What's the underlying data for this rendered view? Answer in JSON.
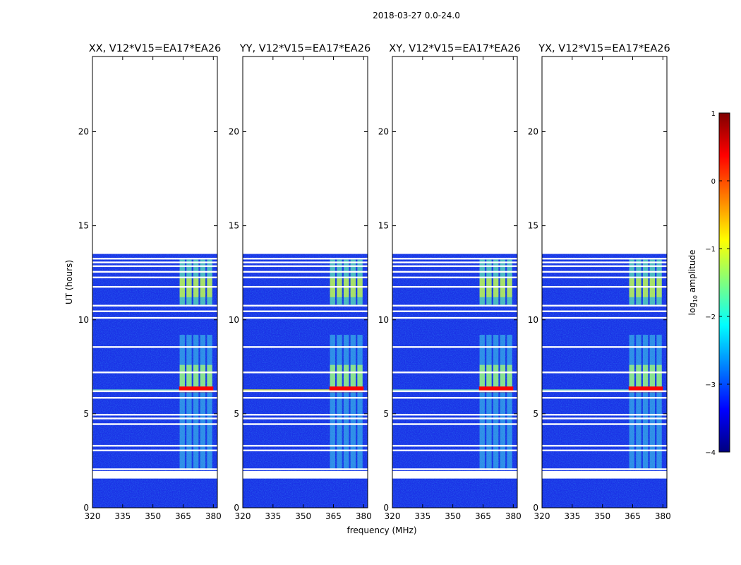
{
  "figure": {
    "suptitle": "2018-03-27 0.0-24.0",
    "colorbar": {
      "label_main": "log",
      "label_sub": "10",
      "label_tail": " amplitude",
      "min": -4,
      "max": 1,
      "ticks": [
        "1",
        "0",
        "−1",
        "−2",
        "−3",
        "−4"
      ],
      "tick_values": [
        1,
        0,
        -1,
        -2,
        -3,
        -4
      ],
      "colors": [
        "#00007f",
        "#0000ff",
        "#007fff",
        "#00ffff",
        "#7fff7f",
        "#ffff00",
        "#ff7f00",
        "#ff0000",
        "#7f0000"
      ]
    }
  },
  "chart_data": [
    {
      "type": "heatmap",
      "title": "XX, V12*V15=EA17*EA26",
      "xlabel": "",
      "ylabel": "UT (hours)",
      "xlim": [
        320,
        382
      ],
      "ylim": [
        0,
        24
      ],
      "xticks": [
        "320",
        "335",
        "350",
        "365",
        "380"
      ],
      "xtick_values": [
        320,
        335,
        350,
        365,
        380
      ],
      "yticks": [
        "0",
        "5",
        "10",
        "15",
        "20"
      ],
      "ytick_values": [
        0,
        5,
        10,
        15,
        20
      ],
      "data_extent_hours": [
        0,
        13.5
      ],
      "flagged_hours": [
        1.6,
        1.9,
        2.05,
        3.05,
        3.3,
        4.45,
        4.75,
        4.95,
        5.85,
        6.2,
        7.2,
        8.55,
        10.1,
        10.45,
        10.75,
        11.75,
        12.25,
        12.55,
        12.85,
        13.05,
        13.25
      ],
      "strong_rfi_band_mhz": [
        363,
        380
      ]
    },
    {
      "type": "heatmap",
      "title": "YY, V12*V15=EA17*EA26",
      "xlabel": "frequency (MHz)",
      "ylabel": "",
      "xlim": [
        320,
        382
      ],
      "ylim": [
        0,
        24
      ],
      "xticks": [
        "320",
        "335",
        "350",
        "365",
        "380"
      ],
      "xtick_values": [
        320,
        335,
        350,
        365,
        380
      ],
      "yticks": [
        "0",
        "5",
        "10",
        "15",
        "20"
      ],
      "ytick_values": [
        0,
        5,
        10,
        15,
        20
      ],
      "data_extent_hours": [
        0,
        13.5
      ],
      "flagged_hours": [
        1.6,
        1.9,
        2.05,
        3.05,
        3.3,
        4.45,
        4.75,
        4.95,
        5.85,
        6.2,
        7.2,
        8.55,
        10.1,
        10.45,
        10.75,
        11.75,
        12.25,
        12.55,
        12.85,
        13.05,
        13.25
      ],
      "strong_rfi_band_mhz": [
        363,
        380
      ]
    },
    {
      "type": "heatmap",
      "title": "XY, V12*V15=EA17*EA26",
      "xlabel": "",
      "ylabel": "",
      "xlim": [
        320,
        382
      ],
      "ylim": [
        0,
        24
      ],
      "xticks": [
        "320",
        "335",
        "350",
        "365",
        "380"
      ],
      "xtick_values": [
        320,
        335,
        350,
        365,
        380
      ],
      "yticks": [
        "0",
        "5",
        "10",
        "15",
        "20"
      ],
      "ytick_values": [
        0,
        5,
        10,
        15,
        20
      ],
      "data_extent_hours": [
        0,
        13.5
      ],
      "flagged_hours": [
        1.6,
        1.9,
        2.05,
        3.05,
        3.3,
        4.45,
        4.75,
        4.95,
        5.85,
        6.2,
        7.2,
        8.55,
        10.1,
        10.45,
        10.75,
        11.75,
        12.25,
        12.55,
        12.85,
        13.05,
        13.25
      ],
      "strong_rfi_band_mhz": [
        363,
        380
      ]
    },
    {
      "type": "heatmap",
      "title": "YX, V12*V15=EA17*EA26",
      "xlabel": "",
      "ylabel": "",
      "xlim": [
        320,
        382
      ],
      "ylim": [
        0,
        24
      ],
      "xticks": [
        "320",
        "335",
        "350",
        "365",
        "380"
      ],
      "xtick_values": [
        320,
        335,
        350,
        365,
        380
      ],
      "yticks": [
        "0",
        "5",
        "10",
        "15",
        "20"
      ],
      "ytick_values": [
        0,
        5,
        10,
        15,
        20
      ],
      "data_extent_hours": [
        0,
        13.5
      ],
      "flagged_hours": [
        1.6,
        1.9,
        2.05,
        3.05,
        3.3,
        4.45,
        4.75,
        4.95,
        5.85,
        6.2,
        7.2,
        8.55,
        10.1,
        10.45,
        10.75,
        11.75,
        12.25,
        12.55,
        12.85,
        13.05,
        13.25
      ],
      "strong_rfi_band_mhz": [
        363,
        380
      ]
    }
  ]
}
